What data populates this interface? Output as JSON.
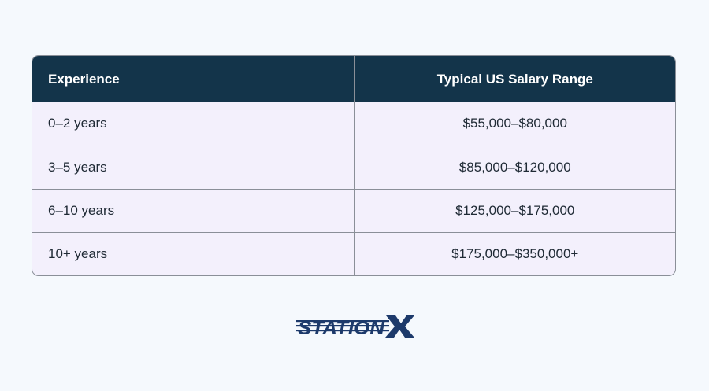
{
  "table": {
    "headers": [
      "Experience",
      "Typical US Salary Range"
    ],
    "rows": [
      {
        "experience": "0–2 years",
        "salary": "$55,000–$80,000"
      },
      {
        "experience": "3–5 years",
        "salary": "$85,000–$120,000"
      },
      {
        "experience": "6–10 years",
        "salary": "$125,000–$175,000"
      },
      {
        "experience": "10+ years",
        "salary": "$175,000–$350,000+"
      }
    ]
  },
  "logo": {
    "text": "STATIONX",
    "color": "#1d3a6b"
  },
  "colors": {
    "header_bg": "#13344a",
    "row_bg": "#f3f0fc",
    "page_bg": "#f5f9fd",
    "border": "#8a8f98"
  }
}
